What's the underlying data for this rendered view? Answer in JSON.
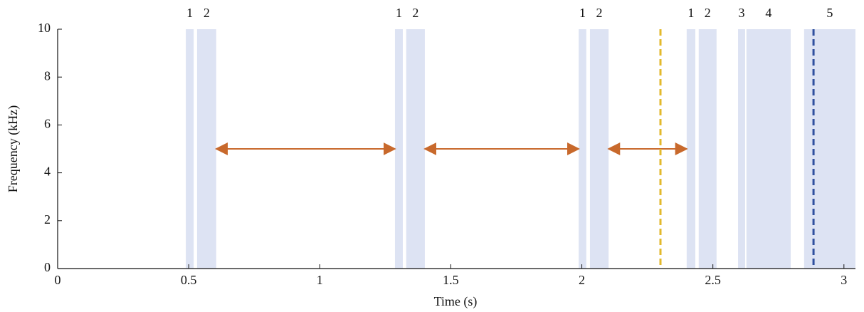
{
  "chart_data": {
    "type": "spectrogram",
    "xlabel": "Time (s)",
    "ylabel": "Frequency (kHz)",
    "xlim": [
      0,
      3.044
    ],
    "ylim": [
      0,
      10
    ],
    "xticks": [
      0,
      0.5,
      1,
      1.5,
      2,
      2.5,
      3
    ],
    "yticks": [
      0,
      2,
      4,
      6,
      8,
      10
    ],
    "region_color": "#dde3f3",
    "regions": [
      {
        "label": "1",
        "start": 0.489,
        "end": 0.519
      },
      {
        "label": "2",
        "start": 0.532,
        "end": 0.605
      },
      {
        "label": "1",
        "start": 1.287,
        "end": 1.317
      },
      {
        "label": "2",
        "start": 1.33,
        "end": 1.401
      },
      {
        "label": "1",
        "start": 1.988,
        "end": 2.017
      },
      {
        "label": "2",
        "start": 2.031,
        "end": 2.102
      },
      {
        "label": "1",
        "start": 2.4,
        "end": 2.433
      },
      {
        "label": "2",
        "start": 2.446,
        "end": 2.514
      },
      {
        "label": "3",
        "start": 2.596,
        "end": 2.623
      },
      {
        "label": "4",
        "start": 2.628,
        "end": 2.797
      },
      {
        "label": "5",
        "start": 2.848,
        "end": 3.044
      }
    ],
    "arrow_color": "#c8692c",
    "arrows": [
      {
        "start": 0.605,
        "end": 1.287,
        "y": 5
      },
      {
        "start": 1.401,
        "end": 1.988,
        "y": 5
      },
      {
        "start": 2.102,
        "end": 2.4,
        "y": 5
      }
    ],
    "markers": [
      {
        "x": 2.3,
        "color": "#e3b92c"
      },
      {
        "x": 2.884,
        "color": "#2f4f9e"
      }
    ]
  }
}
